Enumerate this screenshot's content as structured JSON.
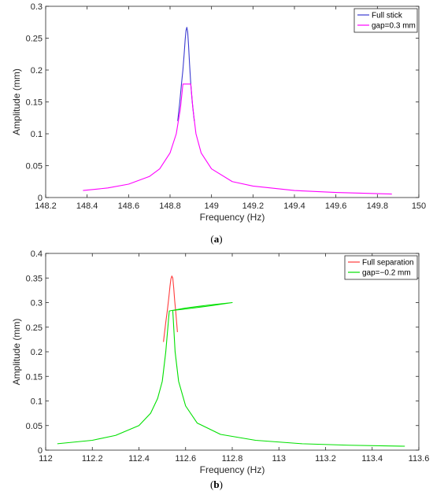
{
  "chart_data": [
    {
      "type": "line",
      "caption_letter": "a",
      "xlabel": "Frequency (Hz)",
      "ylabel": "Amplitude (mm)",
      "xlim": [
        148.2,
        150.0
      ],
      "ylim": [
        0,
        0.3
      ],
      "xticks": [
        "148.2",
        "148.4",
        "148.6",
        "148.8",
        "149",
        "149.2",
        "149.4",
        "149.6",
        "149.8",
        "150"
      ],
      "yticks": [
        "0",
        "0.05",
        "0.1",
        "0.15",
        "0.2",
        "0.25",
        "0.3"
      ],
      "legend_position": "top-right",
      "series": [
        {
          "name": "Full stick",
          "color": "#3b3bd1",
          "x": [
            148.837,
            148.847,
            148.855,
            148.862,
            148.868,
            148.873,
            148.877,
            148.881,
            148.885,
            148.889,
            148.894,
            148.9,
            148.907,
            148.917
          ],
          "y": [
            0.12,
            0.15,
            0.178,
            0.2,
            0.225,
            0.248,
            0.262,
            0.267,
            0.26,
            0.24,
            0.21,
            0.178,
            0.15,
            0.12
          ]
        },
        {
          "name": "gap=0.3 mm",
          "color": "#ff00ff",
          "x": [
            148.38,
            148.5,
            148.6,
            148.7,
            148.75,
            148.8,
            148.83,
            148.85,
            148.862,
            148.87,
            148.9,
            148.91,
            148.925,
            148.95,
            149.0,
            149.1,
            149.2,
            149.4,
            149.6,
            149.87
          ],
          "y": [
            0.011,
            0.015,
            0.021,
            0.033,
            0.045,
            0.07,
            0.1,
            0.14,
            0.178,
            0.178,
            0.178,
            0.14,
            0.1,
            0.07,
            0.045,
            0.025,
            0.018,
            0.011,
            0.008,
            0.0055
          ]
        }
      ]
    },
    {
      "type": "line",
      "caption_letter": "b",
      "xlabel": "Frequency (Hz)",
      "ylabel": "Amplitude (mm)",
      "xlim": [
        112.0,
        113.6
      ],
      "ylim": [
        0,
        0.4
      ],
      "xticks": [
        "112",
        "112.2",
        "112.4",
        "112.6",
        "112.8",
        "113",
        "113.2",
        "113.4",
        "113.6"
      ],
      "yticks": [
        "0",
        "0.05",
        "0.1",
        "0.15",
        "0.2",
        "0.25",
        "0.3",
        "0.35",
        "0.4"
      ],
      "legend_position": "top-right",
      "series": [
        {
          "name": "Full separation",
          "color": "#ff3b3b",
          "x": [
            112.505,
            112.515,
            112.522,
            112.528,
            112.533,
            112.537,
            112.541,
            112.545,
            112.549,
            112.553,
            112.558,
            112.565
          ],
          "y": [
            0.22,
            0.26,
            0.285,
            0.31,
            0.333,
            0.348,
            0.354,
            0.35,
            0.33,
            0.305,
            0.28,
            0.24
          ]
        },
        {
          "name": "gap=−0.2 mm",
          "color": "#00e000",
          "x": [
            112.05,
            112.2,
            112.3,
            112.4,
            112.45,
            112.48,
            112.5,
            112.515,
            112.524,
            112.53,
            112.6,
            112.7,
            112.8,
            112.8,
            112.7,
            112.6,
            112.545,
            112.555,
            112.57,
            112.6,
            112.65,
            112.75,
            112.9,
            113.1,
            113.3,
            113.54
          ],
          "y": [
            0.013,
            0.02,
            0.03,
            0.05,
            0.075,
            0.105,
            0.14,
            0.2,
            0.25,
            0.283,
            0.289,
            0.295,
            0.3,
            0.3,
            0.293,
            0.287,
            0.284,
            0.2,
            0.14,
            0.09,
            0.055,
            0.032,
            0.02,
            0.013,
            0.01,
            0.008
          ]
        }
      ]
    }
  ]
}
